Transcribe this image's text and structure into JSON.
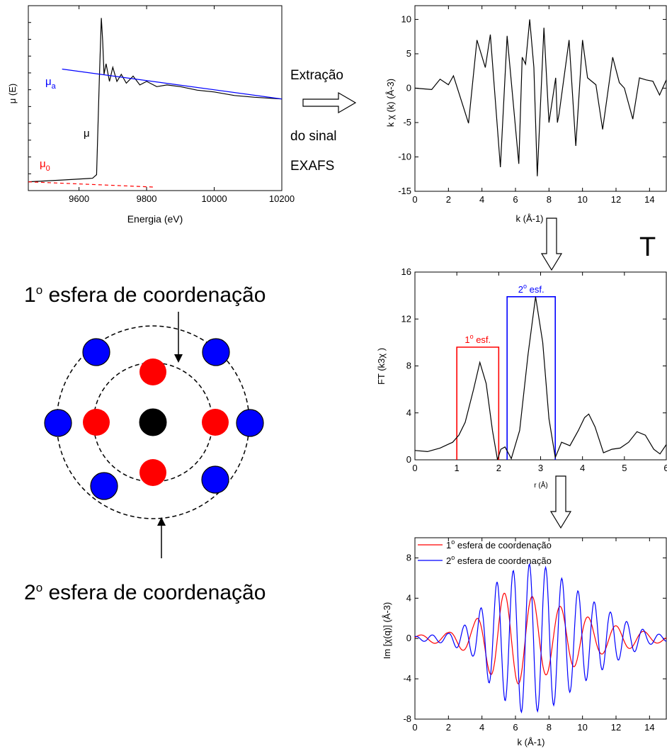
{
  "text": {
    "extract_line1": "Extração",
    "extract_line2": "do sinal",
    "extract_line3": "EXAFS",
    "cut_letter": "T",
    "sphere1_label_num": "1",
    "sphere1_label_sup": "o",
    "sphere1_label_rest": " esfera de coordenação",
    "sphere2_label_num": "2",
    "sphere2_label_sup": "o",
    "sphere2_label_rest": " esfera de coordenação"
  },
  "chart_data": [
    {
      "type": "line",
      "xlabel": "Energia (eV)",
      "ylabel": "μ (E)",
      "xlim": [
        9450,
        10200
      ],
      "x_ticks": [
        "9600",
        "9800",
        "10000",
        "10200"
      ],
      "y_ticks": [],
      "annotations": [
        {
          "text": "μ",
          "sub": "a",
          "color": "#0000ff"
        },
        {
          "text": "μ",
          "sub": "",
          "color": "#000000"
        },
        {
          "text": "μ",
          "sub": "0",
          "color": "#ff0000"
        }
      ],
      "series": [
        {
          "role": "spectrum",
          "color": "#000000",
          "x": [
            9450,
            9550,
            9640,
            9652,
            9660,
            9666,
            9670,
            9674,
            9680,
            9690,
            9700,
            9712,
            9725,
            9740,
            9760,
            9780,
            9800,
            9830,
            9860,
            9900,
            9950,
            10000,
            10060,
            10120,
            10200
          ],
          "y": [
            0.05,
            0.06,
            0.07,
            0.09,
            0.62,
            0.98,
            0.85,
            0.66,
            0.72,
            0.62,
            0.7,
            0.62,
            0.66,
            0.61,
            0.65,
            0.6,
            0.62,
            0.59,
            0.6,
            0.59,
            0.57,
            0.56,
            0.54,
            0.53,
            0.52
          ]
        },
        {
          "role": "post-edge",
          "color": "#0000ff",
          "x": [
            9550,
            10200
          ],
          "y": [
            0.69,
            0.52
          ]
        },
        {
          "role": "pre-edge",
          "color": "#ff0000",
          "dashed": true,
          "x": [
            9450,
            9820
          ],
          "y": [
            0.05,
            0.02
          ]
        }
      ]
    },
    {
      "type": "line",
      "xlabel": "k (Å-1)",
      "ylabel": "k χ (k) (Å-3)",
      "xlim": [
        0,
        15
      ],
      "ylim": [
        -15,
        12
      ],
      "x_ticks": [
        "0",
        "2",
        "4",
        "6",
        "8",
        "10",
        "12",
        "14"
      ],
      "y_ticks": [
        "-15",
        "-10",
        "-5",
        "0",
        "5",
        "10"
      ],
      "series": [
        {
          "color": "#000000",
          "x": [
            0,
            1,
            1.5,
            2,
            2.3,
            3.2,
            3.7,
            4.2,
            4.5,
            5.1,
            5.5,
            6.2,
            6.4,
            6.6,
            6.85,
            7.1,
            7.3,
            7.7,
            8,
            8.4,
            8.5,
            8.6,
            9.2,
            9.6,
            10,
            10.3,
            10.8,
            11.2,
            11.8,
            12.2,
            12.5,
            13,
            13.4,
            13.8,
            14.2,
            14.6,
            15
          ],
          "y": [
            0,
            -0.2,
            1.3,
            0.5,
            1.8,
            -5.1,
            7.0,
            3.0,
            7.8,
            -11.5,
            7.6,
            -11.0,
            4.5,
            3.5,
            10.0,
            3.0,
            -12.8,
            8.8,
            -5.0,
            1.5,
            -5.0,
            -3.8,
            7.0,
            -8.4,
            7.0,
            1.5,
            0.5,
            -6.0,
            4.5,
            0.8,
            0,
            -4.5,
            1.5,
            1.2,
            1.0,
            -1.0,
            1.2
          ]
        }
      ]
    },
    {
      "type": "line",
      "xlabel": "r (Å)",
      "ylabel": "FT (k3χ )",
      "xlim": [
        0,
        6
      ],
      "ylim": [
        0,
        16
      ],
      "x_ticks": [
        "0",
        "1",
        "2",
        "3",
        "4",
        "5",
        "6"
      ],
      "y_ticks": [
        "0",
        "4",
        "8",
        "12",
        "16"
      ],
      "windows": [
        {
          "label_num": "1",
          "label_sup": "o",
          "label_rest": " esf.",
          "color": "#ff0000",
          "r_min": 1.0,
          "r_max": 2.0,
          "height": 9.6
        },
        {
          "label_num": "2",
          "label_sup": "o",
          "label_rest": " esf.",
          "color": "#0000ff",
          "r_min": 2.2,
          "r_max": 3.35,
          "height": 13.9
        }
      ],
      "series": [
        {
          "color": "#000000",
          "x": [
            0,
            0.3,
            0.6,
            0.9,
            1.05,
            1.2,
            1.4,
            1.55,
            1.7,
            1.85,
            1.97,
            2.05,
            2.15,
            2.3,
            2.5,
            2.7,
            2.88,
            3.05,
            3.2,
            3.35,
            3.5,
            3.7,
            3.9,
            4.05,
            4.15,
            4.3,
            4.5,
            4.7,
            4.9,
            5.1,
            5.3,
            5.5,
            5.7,
            5.85,
            6.0
          ],
          "y": [
            0.8,
            0.7,
            1.0,
            1.5,
            2.1,
            3.2,
            6.0,
            8.3,
            6.5,
            2.5,
            0.0,
            0.9,
            1.1,
            0.1,
            2.5,
            9.0,
            13.9,
            10.0,
            3.5,
            0.2,
            1.5,
            1.2,
            2.5,
            3.6,
            3.9,
            2.8,
            0.6,
            0.9,
            1.0,
            1.5,
            2.4,
            2.1,
            0.9,
            0.5,
            1.3
          ]
        }
      ]
    },
    {
      "type": "line",
      "xlabel": "k (Å-1)",
      "ylabel": "Im [χ(q)] (Å-3)",
      "xlim": [
        0,
        15
      ],
      "ylim": [
        -8,
        10
      ],
      "x_ticks": [
        "0",
        "2",
        "4",
        "6",
        "8",
        "10",
        "12",
        "14"
      ],
      "y_ticks": [
        "-8",
        "-4",
        "0",
        "4",
        "8"
      ],
      "legend_position": "top",
      "series": [
        {
          "name_num": "1",
          "name_sup": "o",
          "name_rest": " esfera de coordenação",
          "color": "#ff0000",
          "freq": 0.9,
          "phase": 0.3,
          "amp": [
            [
              0,
              0.3
            ],
            [
              2,
              0.6
            ],
            [
              3.5,
              1.6
            ],
            [
              5,
              4.5
            ],
            [
              6.5,
              4.5
            ],
            [
              8,
              3.5
            ],
            [
              9.5,
              2.8
            ],
            [
              11,
              1.6
            ],
            [
              12.5,
              1.1
            ],
            [
              14,
              0.6
            ],
            [
              15,
              0.3
            ]
          ]
        },
        {
          "name_num": "2",
          "name_sup": "o",
          "name_rest": " esfera de coordenação",
          "color": "#0000ff",
          "freq": 1.55,
          "phase": 1.2,
          "amp": [
            [
              0,
              0.2
            ],
            [
              2,
              0.5
            ],
            [
              3.5,
              1.8
            ],
            [
              4.8,
              5.5
            ],
            [
              6.5,
              7.5
            ],
            [
              8,
              7.0
            ],
            [
              9.5,
              5.0
            ],
            [
              11,
              3.3
            ],
            [
              12.5,
              1.8
            ],
            [
              14,
              0.6
            ],
            [
              15,
              0.3
            ]
          ]
        }
      ]
    }
  ],
  "diagram": {
    "colors": {
      "center": "#000000",
      "first": "#ff0000",
      "second": "#0000ff"
    }
  }
}
